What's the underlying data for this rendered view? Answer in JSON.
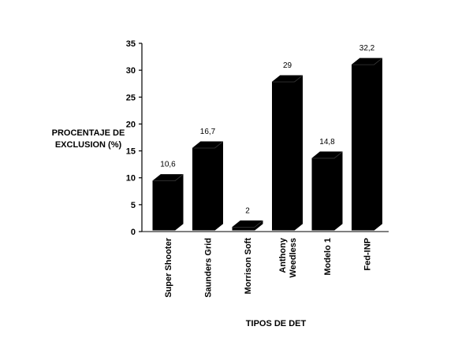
{
  "chart_data": {
    "type": "bar",
    "categories": [
      "Super Shooter",
      "Saunders Grid",
      "Morrison Soft",
      "Anthony Weedless",
      "Modelo 1",
      "Fed-INP"
    ],
    "category_lines": [
      [
        "Super Shooter"
      ],
      [
        "Saunders Grid"
      ],
      [
        "Morrison Soft"
      ],
      [
        "Anthony",
        "Weedless"
      ],
      [
        "Modelo 1"
      ],
      [
        "Fed-INP"
      ]
    ],
    "values": [
      10.6,
      16.7,
      2,
      29,
      14.8,
      32.2
    ],
    "data_labels": [
      "10,6",
      "16,7",
      "2",
      "29",
      "14,8",
      "32,2"
    ],
    "ylabel_lines": [
      "PROCENTAJE DE",
      "EXCLUSION (%)"
    ],
    "xlabel": "TIPOS DE DET",
    "ylim": [
      0,
      35
    ],
    "yticks": [
      0,
      5,
      10,
      15,
      20,
      25,
      30,
      35
    ],
    "grid": false,
    "bar_color": "#000000",
    "style": "3d-bar"
  }
}
